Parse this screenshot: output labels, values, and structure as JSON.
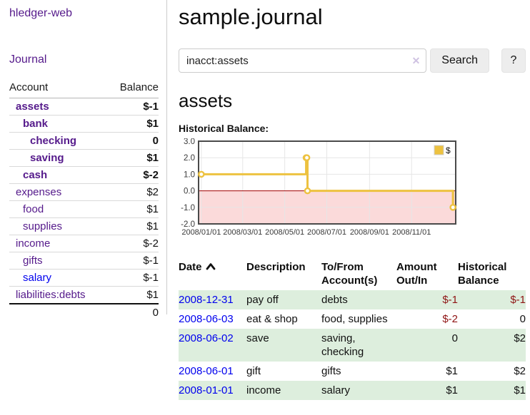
{
  "sidebar": {
    "brand": "hledger-web",
    "nav_journal": "Journal",
    "accounts_table": {
      "headers": [
        "Account",
        "Balance"
      ],
      "rows": [
        {
          "name": "assets",
          "balance": "$-1",
          "indent": 1,
          "bold": true,
          "name_color": "purple",
          "balance_color": "neg-strong"
        },
        {
          "name": "bank",
          "balance": "$1",
          "indent": 2,
          "bold": true,
          "name_color": "purple",
          "balance_color": "default"
        },
        {
          "name": "checking",
          "balance": "0",
          "indent": 3,
          "bold": true,
          "name_color": "purple",
          "balance_color": "default"
        },
        {
          "name": "saving",
          "balance": "$1",
          "indent": 3,
          "bold": true,
          "name_color": "purple",
          "balance_color": "default"
        },
        {
          "name": "cash",
          "balance": "$-2",
          "indent": 2,
          "bold": true,
          "name_color": "purple",
          "balance_color": "neg-strong"
        },
        {
          "name": "expenses",
          "balance": "$2",
          "indent": 1,
          "bold": false,
          "name_color": "purple",
          "balance_color": "default"
        },
        {
          "name": "food",
          "balance": "$1",
          "indent": 2,
          "bold": false,
          "name_color": "purple",
          "balance_color": "default"
        },
        {
          "name": "supplies",
          "balance": "$1",
          "indent": 2,
          "bold": false,
          "name_color": "purple",
          "balance_color": "default"
        },
        {
          "name": "income",
          "balance": "$-2",
          "indent": 1,
          "bold": false,
          "name_color": "purple",
          "balance_color": "neg-muted"
        },
        {
          "name": "gifts",
          "balance": "$-1",
          "indent": 2,
          "bold": false,
          "name_color": "purple",
          "balance_color": "neg-muted"
        },
        {
          "name": "salary",
          "balance": "$-1",
          "indent": 2,
          "bold": false,
          "name_color": "blue",
          "balance_color": "neg-muted"
        },
        {
          "name": "liabilities:debts",
          "balance": "$1",
          "indent": 1,
          "bold": false,
          "name_color": "purple",
          "balance_color": "default"
        }
      ],
      "total": "0"
    }
  },
  "header": {
    "title": "sample.journal"
  },
  "search": {
    "value": "inacct:assets",
    "clear_icon": "✕",
    "button_label": "Search",
    "help_label": "?"
  },
  "account_page": {
    "heading": "assets"
  },
  "chart_data": {
    "type": "line",
    "title": "Historical Balance:",
    "step": true,
    "series": [
      {
        "name": "$",
        "points": [
          {
            "date": "2008-01-01",
            "day": 0,
            "value": 1
          },
          {
            "date": "2008-06-01",
            "day": 152,
            "value": 2
          },
          {
            "date": "2008-06-02",
            "day": 153,
            "value": 2
          },
          {
            "date": "2008-06-03",
            "day": 154,
            "value": 0
          },
          {
            "date": "2008-12-31",
            "day": 365,
            "value": -1
          }
        ]
      }
    ],
    "x_ticks": [
      {
        "label": "2008/01/01",
        "day": 0
      },
      {
        "label": "2008/03/01",
        "day": 60
      },
      {
        "label": "2008/05/01",
        "day": 121
      },
      {
        "label": "2008/07/01",
        "day": 182
      },
      {
        "label": "2008/09/01",
        "day": 244
      },
      {
        "label": "2008/11/01",
        "day": 305
      }
    ],
    "y_ticks": [
      "3.0",
      "2.0",
      "1.0",
      "0.0",
      "-1.0",
      "-2.0"
    ],
    "y_tick_values": [
      3,
      2,
      1,
      0,
      -1,
      -2
    ],
    "ylim": [
      -2,
      3
    ],
    "xlim_days": [
      -4,
      369
    ],
    "legend": [
      "$"
    ],
    "legend_position": "top-right",
    "grid": true,
    "line_color": "#edc240",
    "marker_fill": "#ffffff",
    "negative_zone_color": "#fbdada",
    "zero_line_color": "#a00000",
    "grid_color": "#e6e6e6",
    "border_color": "#4a4a4a",
    "axis_label_color": "#3a3a3a"
  },
  "register_table": {
    "headers": [
      {
        "line1": "Date",
        "sorted": "asc"
      },
      {
        "line1": "Description"
      },
      {
        "line1": "To/From",
        "line2": "Account(s)"
      },
      {
        "line1": "Amount",
        "line2": "Out/In"
      },
      {
        "line1": "Historical",
        "line2": "Balance"
      }
    ],
    "rows": [
      {
        "date": "2008-12-31",
        "description": "pay off",
        "accounts": "debts",
        "amount": "$-1",
        "balance": "$-1",
        "amount_negative": true,
        "balance_negative": true
      },
      {
        "date": "2008-06-03",
        "description": "eat & shop",
        "accounts": "food, supplies",
        "amount": "$-2",
        "balance": "0",
        "amount_negative": true,
        "balance_negative": false
      },
      {
        "date": "2008-06-02",
        "description": "save",
        "accounts": "saving, checking",
        "amount": "0",
        "balance": "$2",
        "amount_negative": false,
        "balance_negative": false
      },
      {
        "date": "2008-06-01",
        "description": "gift",
        "accounts": "gifts",
        "amount": "$1",
        "balance": "$2",
        "amount_negative": false,
        "balance_negative": false
      },
      {
        "date": "2008-01-01",
        "description": "income",
        "accounts": "salary",
        "amount": "$1",
        "balance": "$1",
        "amount_negative": false,
        "balance_negative": false
      }
    ]
  },
  "colors": {
    "link_purple": "#551a8b",
    "link_blue": "#0000ee",
    "negative_strong": "#8f1414",
    "negative_muted": "#b96c6c",
    "row_stripe_green": "#ddeedd",
    "button_gray": "#ededed"
  }
}
